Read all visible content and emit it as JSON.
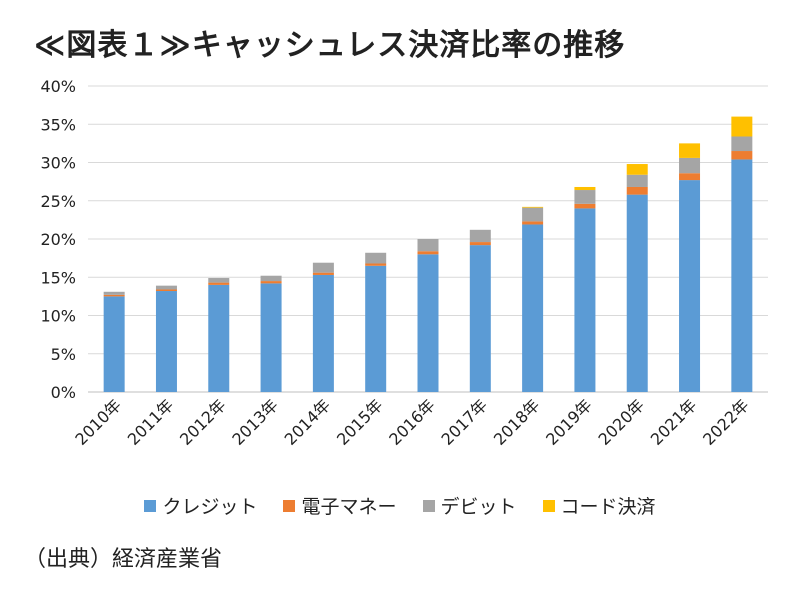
{
  "title": "≪図表１≫キャッシュレス決済比率の推移",
  "source": "（出典）経済産業省",
  "colors": {
    "credit": "#5b9bd5",
    "emoney": "#ed7d31",
    "debit": "#a5a5a5",
    "code": "#ffc000",
    "grid": "#d9d9d9"
  },
  "chart_data": {
    "type": "bar",
    "stacked": true,
    "categories": [
      "2010年",
      "2011年",
      "2012年",
      "2013年",
      "2014年",
      "2015年",
      "2016年",
      "2017年",
      "2018年",
      "2019年",
      "2020年",
      "2021年",
      "2022年"
    ],
    "series": [
      {
        "name": "クレジット",
        "color": "#5b9bd5",
        "values": [
          12.5,
          13.2,
          14.0,
          14.2,
          15.3,
          16.5,
          18.0,
          19.2,
          21.9,
          24.0,
          25.8,
          27.7,
          30.4
        ]
      },
      {
        "name": "電子マネー",
        "color": "#ed7d31",
        "values": [
          0.2,
          0.2,
          0.3,
          0.3,
          0.3,
          0.3,
          0.4,
          0.4,
          0.4,
          0.6,
          1.0,
          0.9,
          1.1
        ]
      },
      {
        "name": "デビット",
        "color": "#a5a5a5",
        "values": [
          0.4,
          0.5,
          0.6,
          0.7,
          1.3,
          1.4,
          1.6,
          1.6,
          1.8,
          1.8,
          1.6,
          2.0,
          1.9
        ]
      },
      {
        "name": "コード決済",
        "color": "#ffc000",
        "values": [
          0,
          0,
          0,
          0,
          0,
          0,
          0,
          0,
          0.1,
          0.4,
          1.4,
          1.9,
          2.6
        ]
      }
    ],
    "ylim": [
      0,
      40
    ],
    "yticks": [
      "0%",
      "5%",
      "10%",
      "15%",
      "20%",
      "25%",
      "30%",
      "35%",
      "40%"
    ],
    "grid": true,
    "legend_position": "bottom"
  }
}
